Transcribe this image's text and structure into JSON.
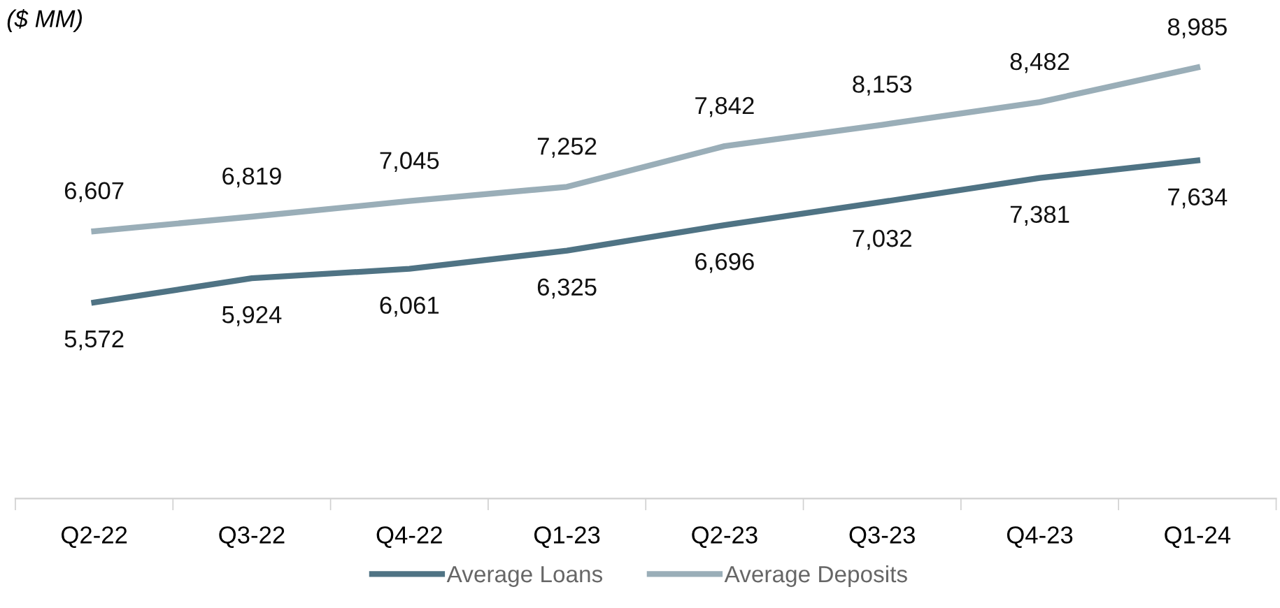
{
  "chart_data": {
    "type": "line",
    "ylabel": "($ MM)",
    "categories": [
      "Q2-22",
      "Q3-22",
      "Q4-22",
      "Q1-23",
      "Q2-23",
      "Q3-23",
      "Q4-23",
      "Q1-24"
    ],
    "series": [
      {
        "name": "Average Loans",
        "color": "#4f7384",
        "values": [
          5572,
          5924,
          6061,
          6325,
          6696,
          7032,
          7381,
          7634
        ],
        "value_labels": [
          "5,572",
          "5,924",
          "6,061",
          "6,325",
          "6,696",
          "7,032",
          "7,381",
          "7,634"
        ]
      },
      {
        "name": "Average Deposits",
        "color": "#9aaeb8",
        "values": [
          6607,
          6819,
          7045,
          7252,
          7842,
          8153,
          8482,
          8985
        ],
        "value_labels": [
          "6,607",
          "6,819",
          "7,045",
          "7,252",
          "7,842",
          "8,153",
          "8,482",
          "8,985"
        ]
      }
    ],
    "legend": "bottom",
    "grid": false,
    "marker": "none",
    "line_style": "solid"
  }
}
